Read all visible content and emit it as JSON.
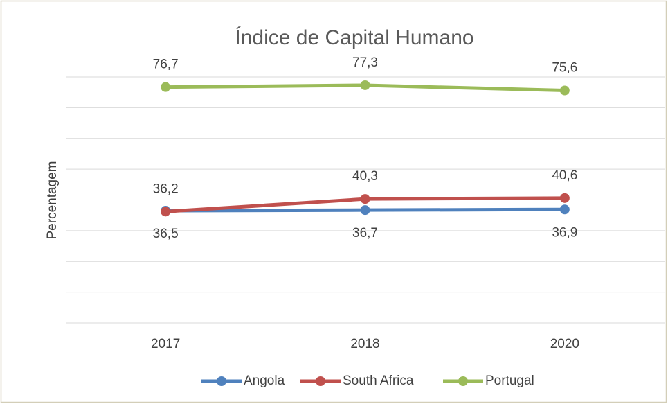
{
  "chart_data": {
    "type": "line",
    "title": "Índice de Capital Humano",
    "y_label": "Percentagem",
    "categories": [
      "2017",
      "2018",
      "2020"
    ],
    "series": [
      {
        "name": "Angola",
        "color": "#4f81bd",
        "values": [
          36.5,
          36.7,
          36.9
        ],
        "value_labels": [
          "36,5",
          "36,7",
          "36,9"
        ],
        "label_position": "below"
      },
      {
        "name": "South Africa",
        "color": "#c0504d",
        "values": [
          36.2,
          40.3,
          40.6
        ],
        "value_labels": [
          "36,2",
          "40,3",
          "40,6"
        ],
        "label_position": "above"
      },
      {
        "name": "Portugal",
        "color": "#9bbb59",
        "values": [
          76.7,
          77.3,
          75.6
        ],
        "value_labels": [
          "76,7",
          "77,3",
          "75,6"
        ],
        "label_position": "above"
      }
    ],
    "ylim": [
      0,
      80
    ],
    "yticks": [
      0,
      10,
      20,
      30,
      40,
      50,
      60,
      70,
      80
    ],
    "grid": true,
    "legend": "bottom"
  }
}
